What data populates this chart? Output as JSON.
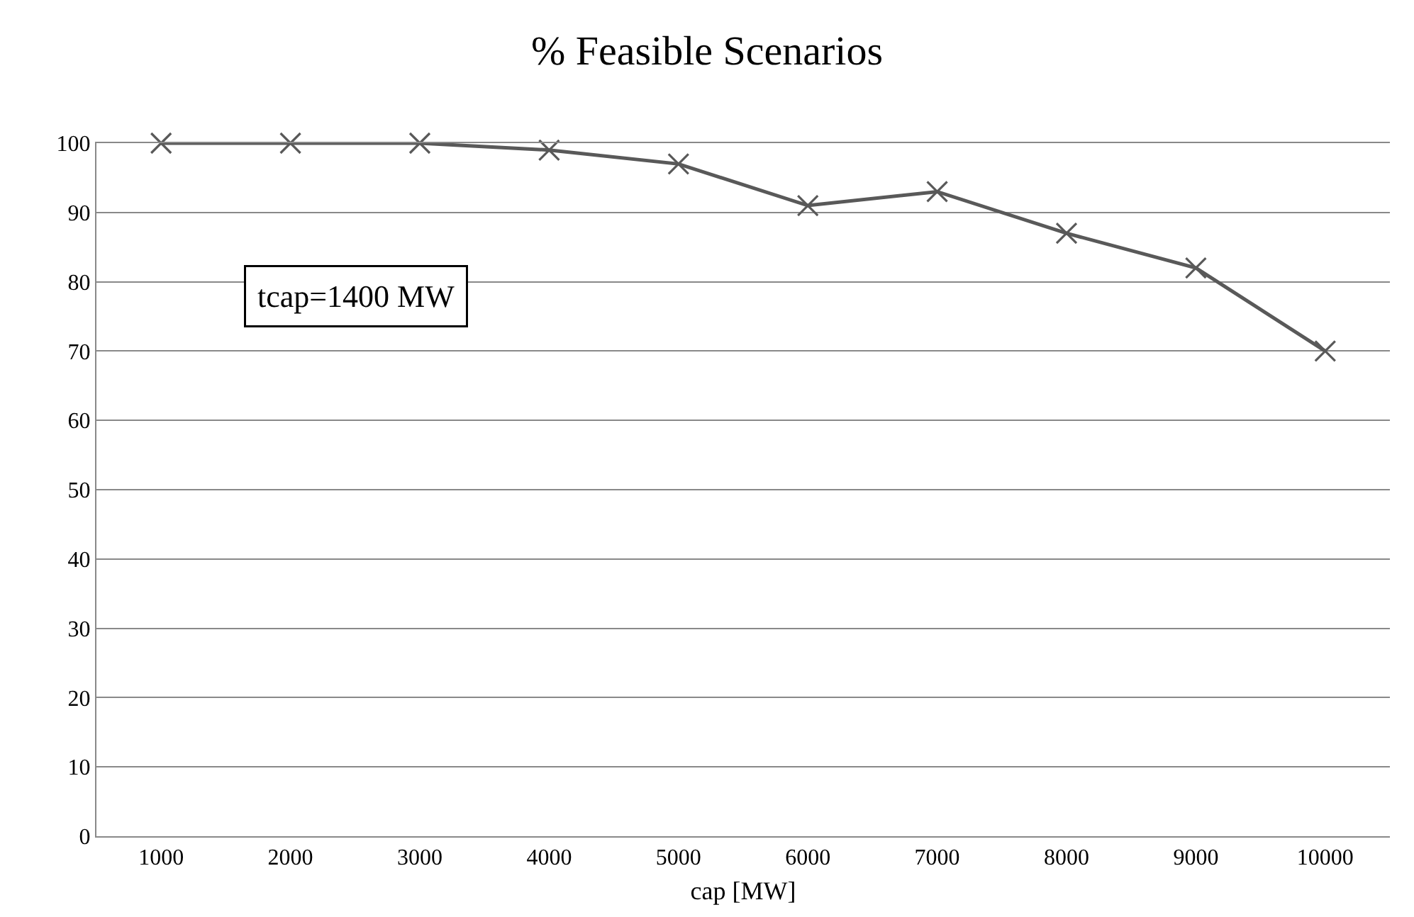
{
  "chart_data": {
    "type": "line",
    "title": "% Feasible Scenarios",
    "xlabel": "cap [MW]",
    "categories": [
      "1000",
      "2000",
      "3000",
      "4000",
      "5000",
      "6000",
      "7000",
      "8000",
      "9000",
      "10000"
    ],
    "series": [
      {
        "color": "#595959",
        "values": [
          100,
          100,
          100,
          99,
          97,
          91,
          93,
          87,
          82,
          70
        ]
      }
    ],
    "ylim": [
      0,
      100
    ],
    "yticks": [
      0,
      10,
      20,
      30,
      40,
      50,
      60,
      70,
      80,
      90,
      100
    ],
    "grid": "y",
    "marker": "cross",
    "line_style": "solid",
    "annotations": [
      "tcap=1400 MW"
    ]
  }
}
